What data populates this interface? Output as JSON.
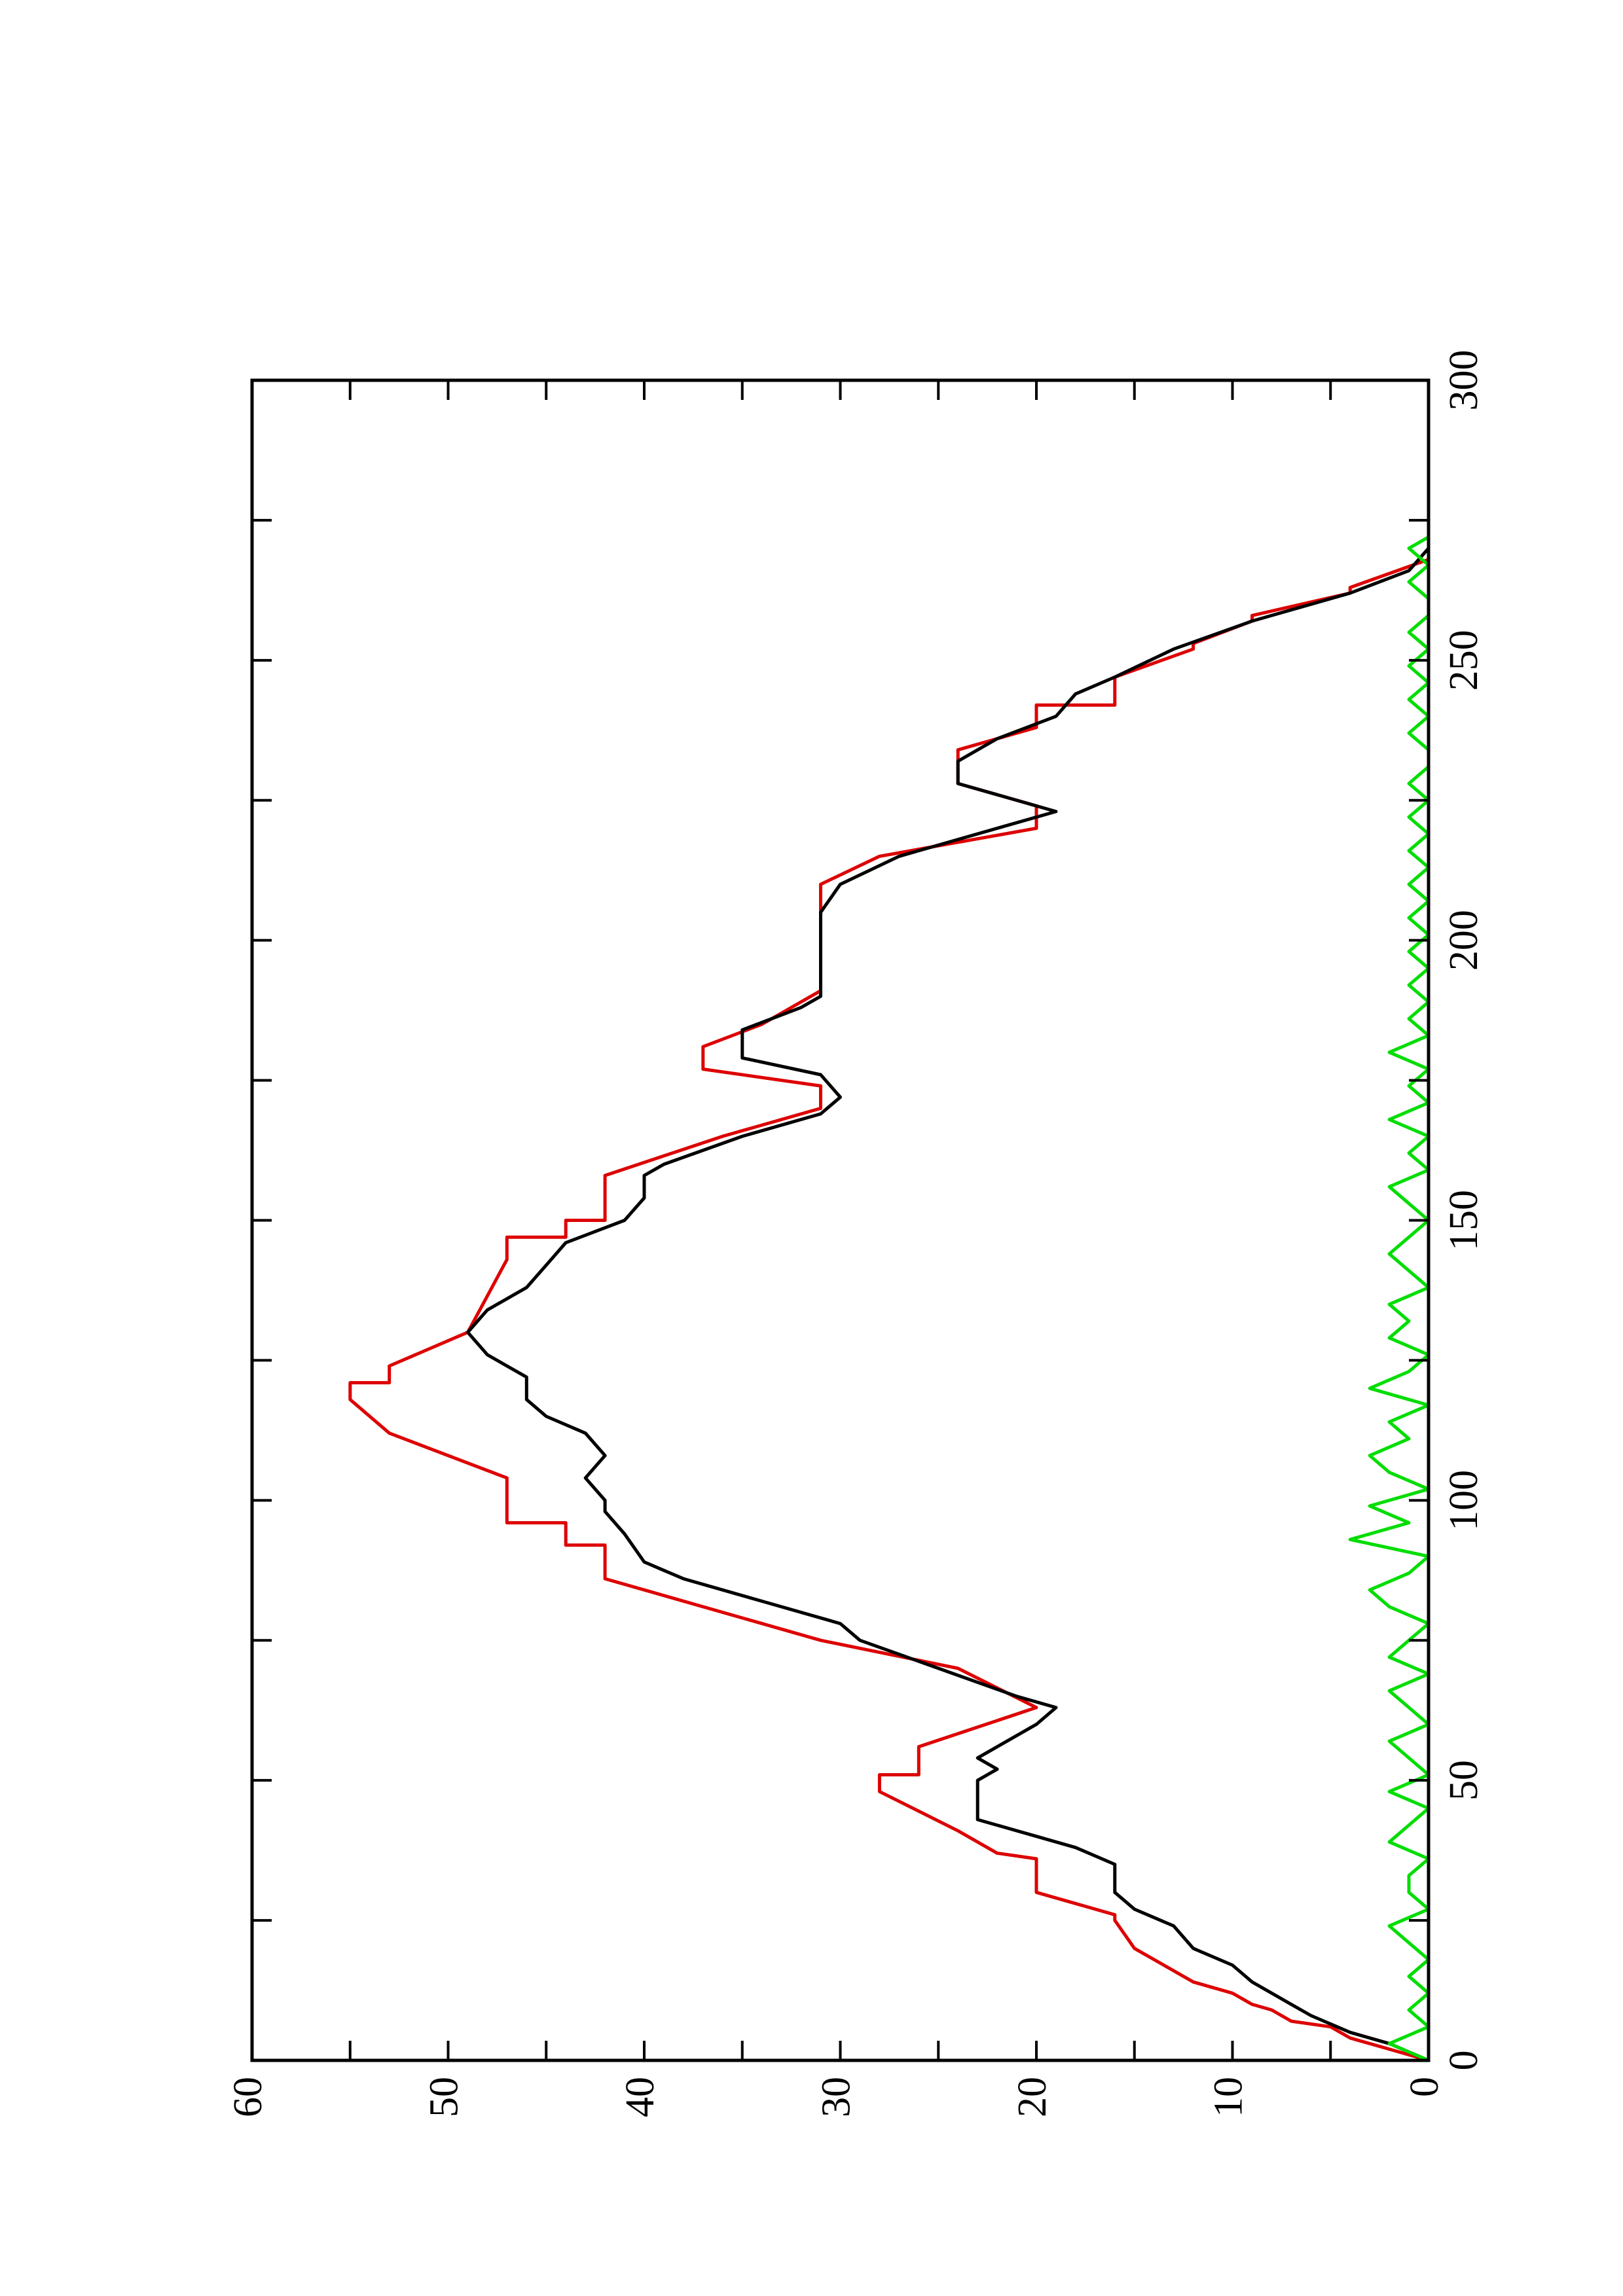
{
  "chart_data": {
    "type": "line",
    "xlim": [
      0,
      300
    ],
    "xticks": [
      0,
      50,
      100,
      150,
      200,
      250,
      300
    ],
    "ylim": [
      0,
      60
    ],
    "yticks": [
      0,
      10,
      20,
      30,
      40,
      50,
      60
    ],
    "series": [
      {
        "color": "#dd0000",
        "x": [
          0,
          2,
          4,
          6,
          7,
          9,
          10,
          12,
          14,
          16,
          20,
          25,
          26,
          30,
          31,
          36,
          37,
          41,
          48,
          48,
          51,
          51,
          56,
          63,
          70,
          75,
          75,
          86,
          86,
          92,
          92,
          96,
          96,
          104,
          104,
          112,
          112,
          118,
          118,
          121,
          121,
          124,
          130,
          143,
          143,
          147,
          147,
          150,
          150,
          158,
          165,
          170,
          174,
          177,
          181,
          185,
          191,
          191,
          210,
          210,
          215,
          215,
          220,
          224,
          228,
          234,
          238,
          238,
          242,
          242,
          247,
          247,
          252,
          253,
          257,
          258,
          262,
          263,
          268
        ],
        "values": [
          0,
          2,
          4,
          5,
          7,
          8,
          9,
          10,
          12,
          13,
          15,
          16,
          16,
          20,
          20,
          20,
          22,
          24,
          28,
          28,
          28,
          26,
          26,
          20,
          24,
          31,
          31,
          42,
          42,
          42,
          44,
          44,
          47,
          47,
          47,
          53,
          53,
          55,
          55,
          55,
          53,
          53,
          49,
          47,
          47,
          47,
          44,
          44,
          42,
          42,
          36,
          31,
          31,
          37,
          37,
          34,
          31,
          31,
          31,
          31,
          28,
          28,
          20,
          20,
          24,
          24,
          20,
          20,
          20,
          16,
          16,
          16,
          12,
          12,
          9,
          9,
          4,
          4,
          0
        ]
      },
      {
        "color": "#000000",
        "x": [
          0,
          3,
          5,
          8,
          10,
          14,
          17,
          20,
          24,
          27,
          30,
          35,
          38,
          40,
          43,
          46,
          50,
          52,
          54,
          56,
          60,
          63,
          65,
          70,
          75,
          78,
          82,
          86,
          89,
          94,
          98,
          100,
          104,
          108,
          112,
          115,
          118,
          122,
          126,
          130,
          134,
          138,
          142,
          146,
          150,
          154,
          158,
          160,
          165,
          169,
          172,
          176,
          179,
          184,
          188,
          190,
          195,
          200,
          205,
          210,
          215,
          220,
          223,
          226,
          228,
          232,
          236,
          240,
          244,
          247,
          252,
          257,
          262,
          266,
          270,
          272
        ],
        "values": [
          0,
          2,
          4,
          6,
          7,
          9,
          10,
          12,
          13,
          15,
          16,
          16,
          18,
          20,
          23,
          23,
          23,
          22,
          23,
          22,
          20,
          19,
          21,
          25,
          29,
          30,
          34,
          38,
          40,
          41,
          42,
          42,
          43,
          42,
          43,
          45,
          46,
          46,
          48,
          49,
          48,
          46,
          45,
          44,
          41,
          40,
          40,
          39,
          35,
          31,
          30,
          31,
          35,
          35,
          32,
          31,
          31,
          31,
          31,
          30,
          27,
          22,
          19,
          22,
          24,
          24,
          22,
          19,
          18,
          16,
          13,
          9,
          4,
          1,
          0,
          0
        ]
      },
      {
        "color": "#00dd00",
        "x": [
          0,
          3,
          6,
          9,
          12,
          15,
          18,
          21,
          24,
          27,
          30,
          33,
          36,
          39,
          42,
          45,
          48,
          51,
          54,
          57,
          60,
          63,
          66,
          69,
          72,
          75,
          78,
          81,
          84,
          87,
          90,
          93,
          96,
          99,
          102,
          105,
          108,
          111,
          114,
          117,
          120,
          123,
          126,
          129,
          132,
          135,
          138,
          141,
          144,
          147,
          150,
          153,
          156,
          159,
          162,
          165,
          168,
          171,
          174,
          177,
          180,
          183,
          186,
          189,
          192,
          195,
          198,
          201,
          204,
          207,
          210,
          213,
          216,
          219,
          222,
          225,
          228,
          231,
          234,
          237,
          240,
          243,
          246,
          249,
          252,
          255,
          258,
          261,
          264,
          267,
          270,
          272
        ],
        "values": [
          0,
          2,
          0,
          1,
          0,
          1,
          0,
          1,
          2,
          0,
          1,
          1,
          0,
          2,
          1,
          0,
          2,
          0,
          1,
          2,
          0,
          1,
          2,
          0,
          2,
          1,
          0,
          2,
          3,
          1,
          0,
          4,
          1,
          3,
          0,
          2,
          3,
          1,
          2,
          0,
          3,
          1,
          0,
          2,
          1,
          2,
          0,
          1,
          2,
          1,
          0,
          1,
          2,
          0,
          1,
          0,
          2,
          0,
          1,
          0,
          2,
          0,
          1,
          0,
          1,
          0,
          1,
          0,
          1,
          0,
          1,
          0,
          1,
          0,
          1,
          0,
          1,
          0,
          0,
          1,
          0,
          1,
          0,
          1,
          0,
          1,
          0,
          0,
          1,
          0,
          1,
          0
        ]
      }
    ]
  }
}
